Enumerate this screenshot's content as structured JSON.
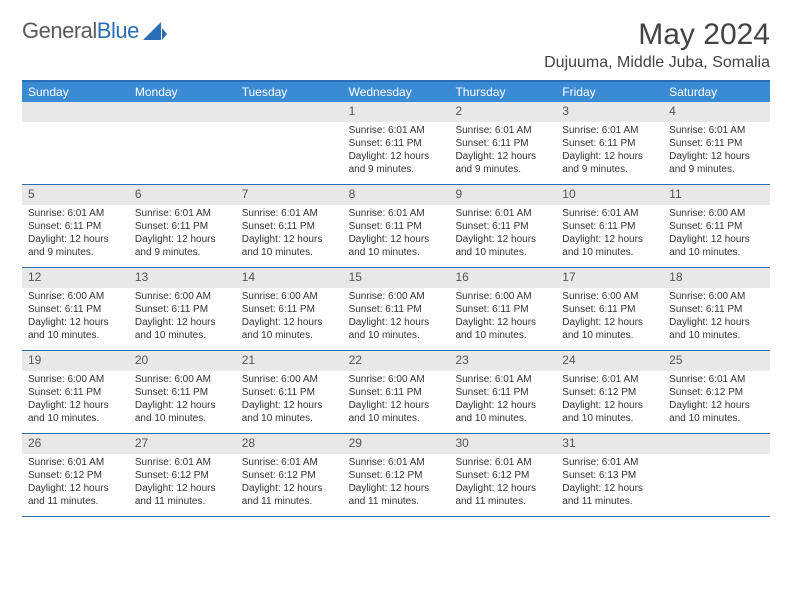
{
  "brand": {
    "part1": "General",
    "part2": "Blue"
  },
  "title": "May 2024",
  "location": "Dujuuma, Middle Juba, Somalia",
  "colors": {
    "header_bg": "#3b8bd4",
    "border": "#2a6fb5",
    "daynum_bg": "#e8e8e8",
    "text": "#333333",
    "logo_gray": "#5a5a5a",
    "logo_blue": "#2a6fb5"
  },
  "typography": {
    "title_fontsize": 30,
    "location_fontsize": 16,
    "dayheader_fontsize": 12,
    "daynum_fontsize": 12,
    "body_fontsize": 10
  },
  "day_headers": [
    "Sunday",
    "Monday",
    "Tuesday",
    "Wednesday",
    "Thursday",
    "Friday",
    "Saturday"
  ],
  "weeks": [
    [
      {
        "empty": true
      },
      {
        "empty": true
      },
      {
        "empty": true
      },
      {
        "num": "1",
        "sunrise": "Sunrise: 6:01 AM",
        "sunset": "Sunset: 6:11 PM",
        "daylight1": "Daylight: 12 hours",
        "daylight2": "and 9 minutes."
      },
      {
        "num": "2",
        "sunrise": "Sunrise: 6:01 AM",
        "sunset": "Sunset: 6:11 PM",
        "daylight1": "Daylight: 12 hours",
        "daylight2": "and 9 minutes."
      },
      {
        "num": "3",
        "sunrise": "Sunrise: 6:01 AM",
        "sunset": "Sunset: 6:11 PM",
        "daylight1": "Daylight: 12 hours",
        "daylight2": "and 9 minutes."
      },
      {
        "num": "4",
        "sunrise": "Sunrise: 6:01 AM",
        "sunset": "Sunset: 6:11 PM",
        "daylight1": "Daylight: 12 hours",
        "daylight2": "and 9 minutes."
      }
    ],
    [
      {
        "num": "5",
        "sunrise": "Sunrise: 6:01 AM",
        "sunset": "Sunset: 6:11 PM",
        "daylight1": "Daylight: 12 hours",
        "daylight2": "and 9 minutes."
      },
      {
        "num": "6",
        "sunrise": "Sunrise: 6:01 AM",
        "sunset": "Sunset: 6:11 PM",
        "daylight1": "Daylight: 12 hours",
        "daylight2": "and 9 minutes."
      },
      {
        "num": "7",
        "sunrise": "Sunrise: 6:01 AM",
        "sunset": "Sunset: 6:11 PM",
        "daylight1": "Daylight: 12 hours",
        "daylight2": "and 10 minutes."
      },
      {
        "num": "8",
        "sunrise": "Sunrise: 6:01 AM",
        "sunset": "Sunset: 6:11 PM",
        "daylight1": "Daylight: 12 hours",
        "daylight2": "and 10 minutes."
      },
      {
        "num": "9",
        "sunrise": "Sunrise: 6:01 AM",
        "sunset": "Sunset: 6:11 PM",
        "daylight1": "Daylight: 12 hours",
        "daylight2": "and 10 minutes."
      },
      {
        "num": "10",
        "sunrise": "Sunrise: 6:01 AM",
        "sunset": "Sunset: 6:11 PM",
        "daylight1": "Daylight: 12 hours",
        "daylight2": "and 10 minutes."
      },
      {
        "num": "11",
        "sunrise": "Sunrise: 6:00 AM",
        "sunset": "Sunset: 6:11 PM",
        "daylight1": "Daylight: 12 hours",
        "daylight2": "and 10 minutes."
      }
    ],
    [
      {
        "num": "12",
        "sunrise": "Sunrise: 6:00 AM",
        "sunset": "Sunset: 6:11 PM",
        "daylight1": "Daylight: 12 hours",
        "daylight2": "and 10 minutes."
      },
      {
        "num": "13",
        "sunrise": "Sunrise: 6:00 AM",
        "sunset": "Sunset: 6:11 PM",
        "daylight1": "Daylight: 12 hours",
        "daylight2": "and 10 minutes."
      },
      {
        "num": "14",
        "sunrise": "Sunrise: 6:00 AM",
        "sunset": "Sunset: 6:11 PM",
        "daylight1": "Daylight: 12 hours",
        "daylight2": "and 10 minutes."
      },
      {
        "num": "15",
        "sunrise": "Sunrise: 6:00 AM",
        "sunset": "Sunset: 6:11 PM",
        "daylight1": "Daylight: 12 hours",
        "daylight2": "and 10 minutes."
      },
      {
        "num": "16",
        "sunrise": "Sunrise: 6:00 AM",
        "sunset": "Sunset: 6:11 PM",
        "daylight1": "Daylight: 12 hours",
        "daylight2": "and 10 minutes."
      },
      {
        "num": "17",
        "sunrise": "Sunrise: 6:00 AM",
        "sunset": "Sunset: 6:11 PM",
        "daylight1": "Daylight: 12 hours",
        "daylight2": "and 10 minutes."
      },
      {
        "num": "18",
        "sunrise": "Sunrise: 6:00 AM",
        "sunset": "Sunset: 6:11 PM",
        "daylight1": "Daylight: 12 hours",
        "daylight2": "and 10 minutes."
      }
    ],
    [
      {
        "num": "19",
        "sunrise": "Sunrise: 6:00 AM",
        "sunset": "Sunset: 6:11 PM",
        "daylight1": "Daylight: 12 hours",
        "daylight2": "and 10 minutes."
      },
      {
        "num": "20",
        "sunrise": "Sunrise: 6:00 AM",
        "sunset": "Sunset: 6:11 PM",
        "daylight1": "Daylight: 12 hours",
        "daylight2": "and 10 minutes."
      },
      {
        "num": "21",
        "sunrise": "Sunrise: 6:00 AM",
        "sunset": "Sunset: 6:11 PM",
        "daylight1": "Daylight: 12 hours",
        "daylight2": "and 10 minutes."
      },
      {
        "num": "22",
        "sunrise": "Sunrise: 6:00 AM",
        "sunset": "Sunset: 6:11 PM",
        "daylight1": "Daylight: 12 hours",
        "daylight2": "and 10 minutes."
      },
      {
        "num": "23",
        "sunrise": "Sunrise: 6:01 AM",
        "sunset": "Sunset: 6:11 PM",
        "daylight1": "Daylight: 12 hours",
        "daylight2": "and 10 minutes."
      },
      {
        "num": "24",
        "sunrise": "Sunrise: 6:01 AM",
        "sunset": "Sunset: 6:12 PM",
        "daylight1": "Daylight: 12 hours",
        "daylight2": "and 10 minutes."
      },
      {
        "num": "25",
        "sunrise": "Sunrise: 6:01 AM",
        "sunset": "Sunset: 6:12 PM",
        "daylight1": "Daylight: 12 hours",
        "daylight2": "and 10 minutes."
      }
    ],
    [
      {
        "num": "26",
        "sunrise": "Sunrise: 6:01 AM",
        "sunset": "Sunset: 6:12 PM",
        "daylight1": "Daylight: 12 hours",
        "daylight2": "and 11 minutes."
      },
      {
        "num": "27",
        "sunrise": "Sunrise: 6:01 AM",
        "sunset": "Sunset: 6:12 PM",
        "daylight1": "Daylight: 12 hours",
        "daylight2": "and 11 minutes."
      },
      {
        "num": "28",
        "sunrise": "Sunrise: 6:01 AM",
        "sunset": "Sunset: 6:12 PM",
        "daylight1": "Daylight: 12 hours",
        "daylight2": "and 11 minutes."
      },
      {
        "num": "29",
        "sunrise": "Sunrise: 6:01 AM",
        "sunset": "Sunset: 6:12 PM",
        "daylight1": "Daylight: 12 hours",
        "daylight2": "and 11 minutes."
      },
      {
        "num": "30",
        "sunrise": "Sunrise: 6:01 AM",
        "sunset": "Sunset: 6:12 PM",
        "daylight1": "Daylight: 12 hours",
        "daylight2": "and 11 minutes."
      },
      {
        "num": "31",
        "sunrise": "Sunrise: 6:01 AM",
        "sunset": "Sunset: 6:13 PM",
        "daylight1": "Daylight: 12 hours",
        "daylight2": "and 11 minutes."
      },
      {
        "empty": true
      }
    ]
  ]
}
